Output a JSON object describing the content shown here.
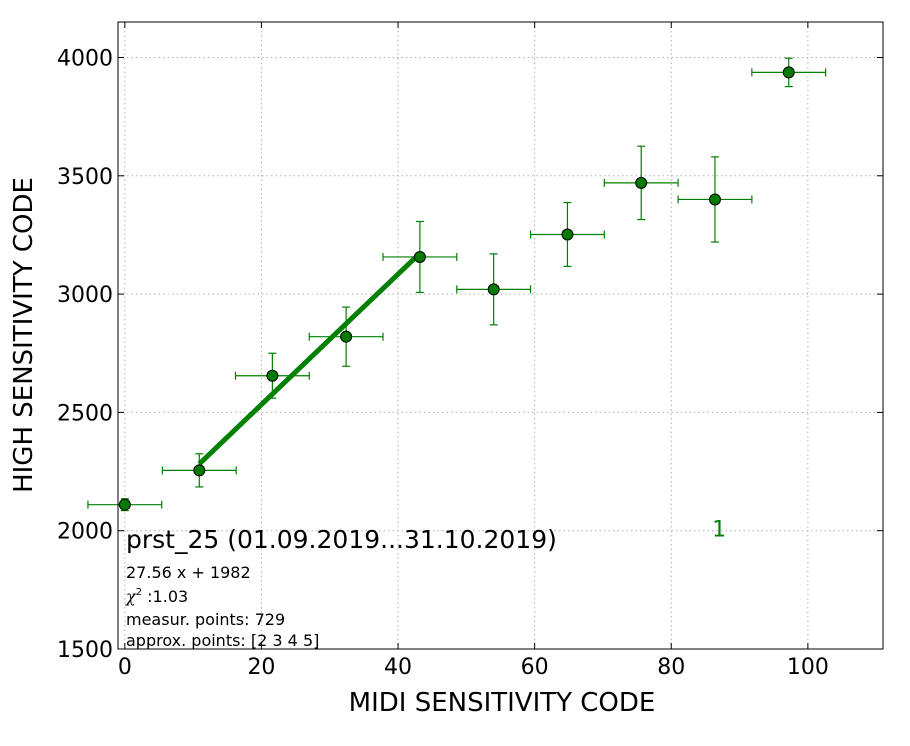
{
  "chart_data": {
    "type": "scatter",
    "xlabel": "MIDI SENSITIVITY CODE",
    "ylabel": "HIGH SENSITIVITY CODE",
    "xlim": [
      -1,
      111
    ],
    "ylim": [
      1500,
      4150
    ],
    "xticks": [
      0,
      20,
      40,
      60,
      80,
      100
    ],
    "yticks": [
      1500,
      2000,
      2500,
      3000,
      3500,
      4000
    ],
    "xtick_labels": [
      "0",
      "20",
      "40",
      "60",
      "80",
      "100"
    ],
    "ytick_labels": [
      "1500",
      "2000",
      "2500",
      "3000",
      "3500",
      "4000"
    ],
    "grid": true,
    "color": "#008000",
    "marker_fill": "#007a00",
    "series": [
      {
        "points": [
          {
            "x": 0.0,
            "y": 2110,
            "xerr": 5.4,
            "yerr": 25
          },
          {
            "x": 10.9,
            "y": 2255,
            "xerr": 5.4,
            "yerr": 70
          },
          {
            "x": 21.6,
            "y": 2655,
            "xerr": 5.4,
            "yerr": 95
          },
          {
            "x": 32.4,
            "y": 2820,
            "xerr": 5.4,
            "yerr": 125
          },
          {
            "x": 43.2,
            "y": 3157,
            "xerr": 5.4,
            "yerr": 150
          },
          {
            "x": 54.0,
            "y": 3020,
            "xerr": 5.4,
            "yerr": 150
          },
          {
            "x": 64.8,
            "y": 3252,
            "xerr": 5.4,
            "yerr": 135
          },
          {
            "x": 75.6,
            "y": 3470,
            "xerr": 5.4,
            "yerr": 155
          },
          {
            "x": 86.4,
            "y": 3400,
            "xerr": 5.4,
            "yerr": 180
          },
          {
            "x": 97.2,
            "y": 3937,
            "xerr": 5.4,
            "yerr": 60
          }
        ]
      }
    ],
    "fit_line": {
      "slope": 27.56,
      "intercept": 1982,
      "x_range": [
        10.9,
        43.2
      ]
    },
    "series_tag": {
      "text": "1",
      "x": 87,
      "y": 2010
    },
    "annotations": {
      "title": "prst_25 (01.09.2019...31.10.2019)",
      "formula": "27.56 x + 1982",
      "chi_symbol": "χ",
      "chi_sup": "2",
      "chi_value": " :1.03",
      "measur": "measur. points: 729",
      "approx": "approx. points: [2 3 4 5]"
    }
  }
}
